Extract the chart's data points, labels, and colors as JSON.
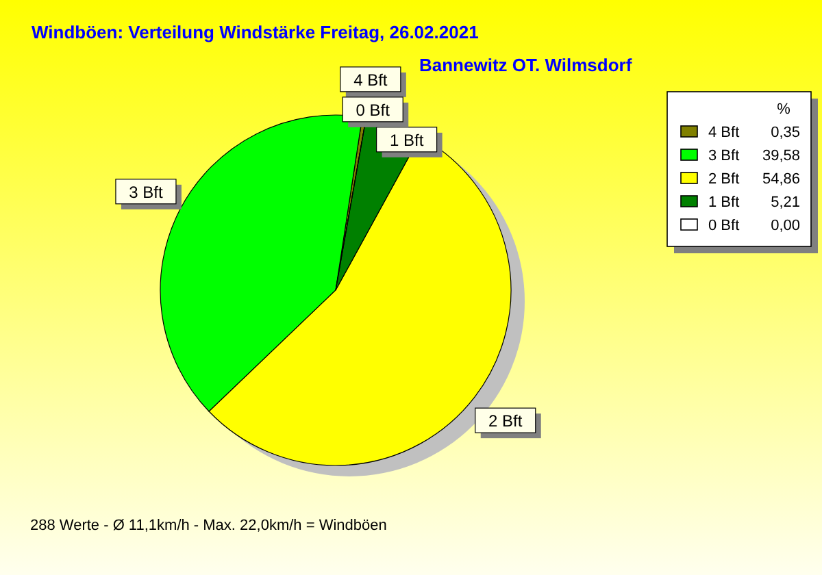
{
  "chart_data": {
    "type": "pie",
    "title": "Windböen: Verteilung Windstärke  Freitag, 26.02.2021",
    "subtitle": "Bannewitz OT. Wilmsdorf",
    "categories": [
      "4 Bft",
      "3 Bft",
      "2 Bft",
      "1 Bft",
      "0 Bft"
    ],
    "values": [
      0.35,
      39.58,
      54.86,
      5.21,
      0.0
    ],
    "value_labels": [
      "0,35",
      "39,58",
      "54,86",
      "5,21",
      "0,00"
    ],
    "colors": [
      "#808000",
      "#00ff00",
      "#ffff00",
      "#008000",
      "#ffffff"
    ],
    "legend": "top right",
    "legend_title": "%",
    "annotations": [
      "288 Werte   -   Ø 11,1km/h  -  Max. 22,0km/h = Windböen"
    ]
  }
}
